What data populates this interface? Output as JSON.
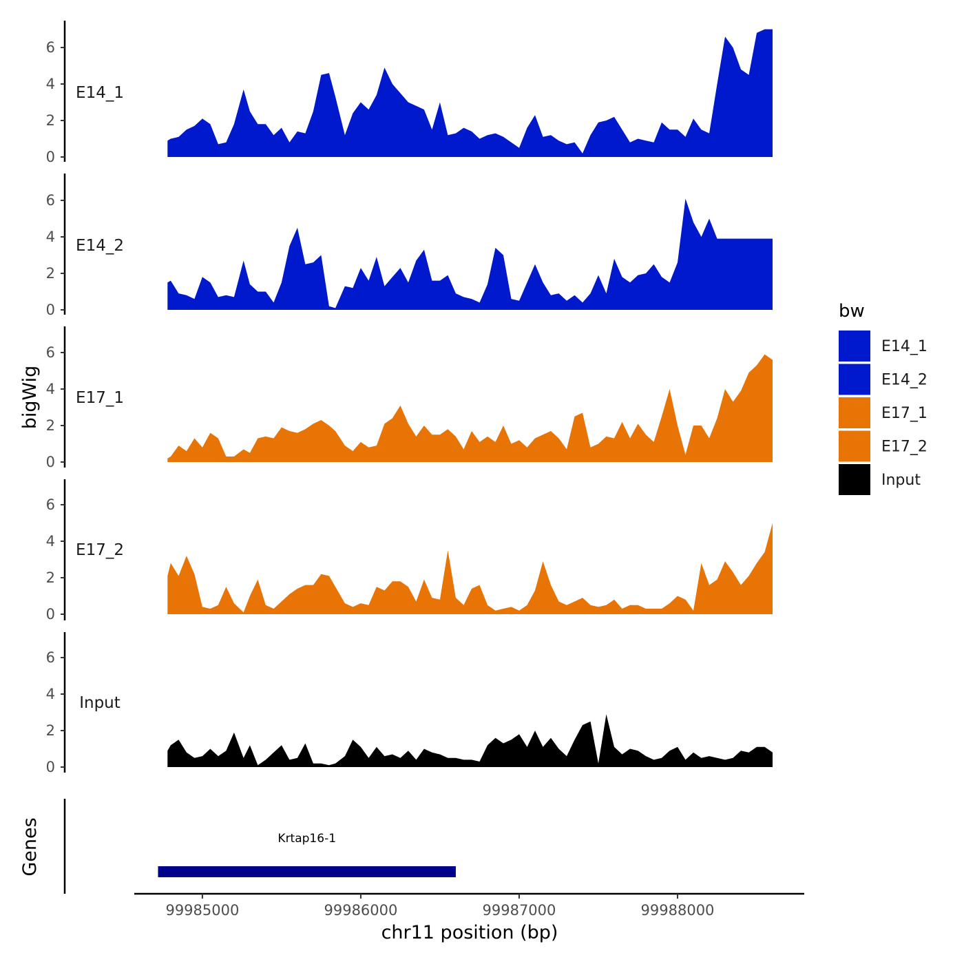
{
  "chart_data": {
    "type": "area",
    "subtype": "genome-track coverage",
    "xlabel": "chr11 position (bp)",
    "ylabel": "bigWig",
    "genes_label": "Genes",
    "x_range": [
      99984570,
      99988800
    ],
    "x_ticks": [
      99985000,
      99986000,
      99987000,
      99988000
    ],
    "x_tick_labels": [
      "99985000",
      "99986000",
      "99987000",
      "99988000"
    ],
    "ylim": [
      0,
      7.5
    ],
    "y_ticks": [
      0,
      2,
      4,
      6
    ],
    "y_tick_labels": [
      "0",
      "2",
      "4",
      "6"
    ],
    "legend": {
      "title": "bw",
      "entries": [
        {
          "name": "E14_1",
          "color": "#0019CC"
        },
        {
          "name": "E14_2",
          "color": "#0019CC"
        },
        {
          "name": "E17_1",
          "color": "#E87405"
        },
        {
          "name": "E17_2",
          "color": "#E87405"
        },
        {
          "name": "Input",
          "color": "#000000"
        }
      ]
    },
    "series": [
      {
        "name": "E14_1",
        "color": "#0019CC",
        "x": [
          99984780,
          99984800,
          99984850,
          99984900,
          99984950,
          99985000,
          99985050,
          99985100,
          99985150,
          99985200,
          99985260,
          99985300,
          99985350,
          99985400,
          99985450,
          99985500,
          99985550,
          99985600,
          99985650,
          99985700,
          99985750,
          99985800,
          99985840,
          99985900,
          99985950,
          99986000,
          99986050,
          99986100,
          99986150,
          99986200,
          99986250,
          99986300,
          99986350,
          99986400,
          99986450,
          99986500,
          99986550,
          99986600,
          99986650,
          99986700,
          99986750,
          99986800,
          99986850,
          99986900,
          99986950,
          99987000,
          99987050,
          99987100,
          99987150,
          99987200,
          99987250,
          99987300,
          99987350,
          99987400,
          99987450,
          99987500,
          99987550,
          99987600,
          99987650,
          99987700,
          99987750,
          99987800,
          99987850,
          99987900,
          99987950,
          99988000,
          99988050,
          99988100,
          99988150,
          99988200,
          99988250,
          99988300,
          99988350,
          99988400,
          99988450,
          99988500,
          99988550,
          99988600
        ],
        "values": [
          0.9,
          1.0,
          1.1,
          1.5,
          1.7,
          2.1,
          1.8,
          0.7,
          0.8,
          1.8,
          3.7,
          2.5,
          1.8,
          1.8,
          1.2,
          1.6,
          0.8,
          1.4,
          1.3,
          2.5,
          4.5,
          4.6,
          3.3,
          1.2,
          2.4,
          3.0,
          2.6,
          3.4,
          4.9,
          4.0,
          3.5,
          3.0,
          2.8,
          2.6,
          1.5,
          3.0,
          1.2,
          1.3,
          1.6,
          1.4,
          1.0,
          1.2,
          1.3,
          1.1,
          0.8,
          0.5,
          1.6,
          2.3,
          1.1,
          1.2,
          0.9,
          0.7,
          0.8,
          0.2,
          1.2,
          1.9,
          2.0,
          2.2,
          1.5,
          0.8,
          1.0,
          0.9,
          0.8,
          1.9,
          1.5,
          1.5,
          1.1,
          2.1,
          1.5,
          1.3,
          4.0,
          6.6,
          6.0,
          4.8,
          4.5,
          6.8,
          7.0,
          7.0
        ]
      },
      {
        "name": "E14_2",
        "color": "#0019CC",
        "x": [
          99984780,
          99984800,
          99984850,
          99984900,
          99984950,
          99985000,
          99985050,
          99985100,
          99985150,
          99985200,
          99985260,
          99985300,
          99985350,
          99985400,
          99985450,
          99985500,
          99985550,
          99985600,
          99985650,
          99985700,
          99985750,
          99985800,
          99985840,
          99985900,
          99985950,
          99986000,
          99986050,
          99986100,
          99986150,
          99986200,
          99986250,
          99986300,
          99986350,
          99986400,
          99986450,
          99986500,
          99986550,
          99986600,
          99986650,
          99986700,
          99986750,
          99986800,
          99986850,
          99986900,
          99986950,
          99987000,
          99987050,
          99987100,
          99987150,
          99987200,
          99987250,
          99987300,
          99987350,
          99987400,
          99987450,
          99987500,
          99987550,
          99987600,
          99987650,
          99987700,
          99987750,
          99987800,
          99987850,
          99987900,
          99987950,
          99988000,
          99988050,
          99988100,
          99988150,
          99988200,
          99988250,
          99988300,
          99988350,
          99988400,
          99988450,
          99988500,
          99988550,
          99988600
        ],
        "values": [
          1.5,
          1.6,
          0.9,
          0.8,
          0.6,
          1.8,
          1.5,
          0.7,
          0.8,
          0.7,
          2.7,
          1.4,
          1.0,
          1.0,
          0.4,
          1.5,
          3.5,
          4.5,
          2.5,
          2.6,
          3.0,
          0.2,
          0.1,
          1.3,
          1.2,
          2.3,
          1.6,
          2.9,
          1.3,
          1.8,
          2.3,
          1.5,
          2.7,
          3.3,
          1.6,
          1.6,
          1.9,
          0.9,
          0.7,
          0.6,
          0.4,
          1.4,
          3.4,
          3.0,
          0.6,
          0.5,
          1.5,
          2.5,
          1.5,
          0.8,
          0.9,
          0.5,
          0.8,
          0.4,
          0.9,
          1.9,
          0.9,
          2.8,
          1.8,
          1.5,
          1.9,
          2.0,
          2.5,
          1.8,
          1.5,
          2.6,
          6.1,
          4.8,
          4.0,
          5.0,
          3.9,
          3.9,
          3.9,
          3.9,
          3.9,
          3.9,
          3.9,
          3.9
        ]
      },
      {
        "name": "E17_1",
        "color": "#E87405",
        "x": [
          99984780,
          99984800,
          99984850,
          99984900,
          99984950,
          99985000,
          99985050,
          99985100,
          99985150,
          99985200,
          99985260,
          99985300,
          99985350,
          99985400,
          99985450,
          99985500,
          99985550,
          99985600,
          99985650,
          99985700,
          99985750,
          99985800,
          99985840,
          99985900,
          99985950,
          99986000,
          99986050,
          99986100,
          99986150,
          99986200,
          99986250,
          99986300,
          99986350,
          99986400,
          99986450,
          99986500,
          99986550,
          99986600,
          99986650,
          99986700,
          99986750,
          99986800,
          99986850,
          99986900,
          99986950,
          99987000,
          99987050,
          99987100,
          99987150,
          99987200,
          99987250,
          99987300,
          99987350,
          99987400,
          99987450,
          99987500,
          99987550,
          99987600,
          99987650,
          99987700,
          99987750,
          99987800,
          99987850,
          99987900,
          99987950,
          99988000,
          99988050,
          99988100,
          99988150,
          99988200,
          99988250,
          99988300,
          99988350,
          99988400,
          99988450,
          99988500,
          99988550,
          99988600
        ],
        "values": [
          0.2,
          0.3,
          0.9,
          0.6,
          1.3,
          0.8,
          1.6,
          1.3,
          0.3,
          0.3,
          0.7,
          0.5,
          1.3,
          1.4,
          1.3,
          1.9,
          1.7,
          1.6,
          1.8,
          2.1,
          2.3,
          2.0,
          1.7,
          0.9,
          0.6,
          1.1,
          0.8,
          0.9,
          2.1,
          2.4,
          3.1,
          2.1,
          1.4,
          2.0,
          1.5,
          1.5,
          1.8,
          1.4,
          0.7,
          1.7,
          1.1,
          1.4,
          1.1,
          2.0,
          1.0,
          1.2,
          0.8,
          1.3,
          1.5,
          1.7,
          1.3,
          0.7,
          2.5,
          2.7,
          0.8,
          1.0,
          1.4,
          1.3,
          2.2,
          1.3,
          2.1,
          1.5,
          1.1,
          2.5,
          4.0,
          2.0,
          0.4,
          2.0,
          2.0,
          1.3,
          2.4,
          4.0,
          3.3,
          3.9,
          4.9,
          5.3,
          5.9,
          5.6
        ]
      },
      {
        "name": "E17_2",
        "color": "#E87405",
        "x": [
          99984780,
          99984800,
          99984850,
          99984900,
          99984950,
          99985000,
          99985050,
          99985100,
          99985150,
          99985200,
          99985260,
          99985300,
          99985350,
          99985400,
          99985450,
          99985500,
          99985550,
          99985600,
          99985650,
          99985700,
          99985750,
          99985800,
          99985840,
          99985900,
          99985950,
          99986000,
          99986050,
          99986100,
          99986150,
          99986200,
          99986250,
          99986300,
          99986350,
          99986400,
          99986450,
          99986500,
          99986550,
          99986600,
          99986650,
          99986700,
          99986750,
          99986800,
          99986850,
          99986900,
          99986950,
          99987000,
          99987050,
          99987100,
          99987150,
          99987200,
          99987250,
          99987300,
          99987350,
          99987400,
          99987450,
          99987500,
          99987550,
          99987600,
          99987650,
          99987700,
          99987750,
          99987800,
          99987850,
          99987900,
          99987950,
          99988000,
          99988050,
          99988100,
          99988150,
          99988200,
          99988250,
          99988300,
          99988350,
          99988400,
          99988450,
          99988500,
          99988550,
          99988600
        ],
        "values": [
          2.1,
          2.8,
          2.1,
          3.2,
          2.2,
          0.4,
          0.3,
          0.5,
          1.5,
          0.6,
          0.1,
          1.0,
          1.9,
          0.5,
          0.3,
          0.7,
          1.1,
          1.4,
          1.6,
          1.6,
          2.2,
          2.1,
          1.5,
          0.6,
          0.4,
          0.6,
          0.5,
          1.5,
          1.3,
          1.8,
          1.8,
          1.5,
          0.7,
          1.9,
          0.9,
          0.8,
          3.5,
          0.9,
          0.5,
          1.4,
          1.6,
          0.5,
          0.2,
          0.3,
          0.4,
          0.2,
          0.5,
          1.3,
          2.9,
          1.6,
          0.7,
          0.5,
          0.7,
          0.9,
          0.5,
          0.4,
          0.5,
          0.8,
          0.3,
          0.5,
          0.5,
          0.3,
          0.3,
          0.3,
          0.6,
          1.0,
          0.8,
          0.2,
          2.8,
          1.6,
          1.9,
          2.9,
          2.3,
          1.6,
          2.1,
          2.8,
          3.4,
          5.0
        ]
      },
      {
        "name": "Input",
        "color": "#000000",
        "x": [
          99984780,
          99984800,
          99984850,
          99984900,
          99984950,
          99985000,
          99985050,
          99985100,
          99985150,
          99985200,
          99985260,
          99985300,
          99985350,
          99985400,
          99985450,
          99985500,
          99985550,
          99985600,
          99985650,
          99985700,
          99985750,
          99985800,
          99985840,
          99985900,
          99985950,
          99986000,
          99986050,
          99986100,
          99986150,
          99986200,
          99986250,
          99986300,
          99986350,
          99986400,
          99986450,
          99986500,
          99986550,
          99986600,
          99986650,
          99986700,
          99986750,
          99986800,
          99986850,
          99986900,
          99986950,
          99987000,
          99987050,
          99987100,
          99987150,
          99987200,
          99987250,
          99987300,
          99987350,
          99987400,
          99987450,
          99987500,
          99987550,
          99987600,
          99987650,
          99987700,
          99987750,
          99987800,
          99987850,
          99987900,
          99987950,
          99988000,
          99988050,
          99988100,
          99988150,
          99988200,
          99988250,
          99988300,
          99988350,
          99988400,
          99988450,
          99988500,
          99988550,
          99988600
        ],
        "values": [
          0.9,
          1.2,
          1.5,
          0.8,
          0.5,
          0.6,
          1.0,
          0.6,
          0.9,
          1.9,
          0.5,
          1.2,
          0.1,
          0.4,
          0.8,
          1.2,
          0.4,
          0.5,
          1.3,
          0.2,
          0.2,
          0.1,
          0.2,
          0.6,
          1.5,
          1.1,
          0.5,
          1.1,
          0.6,
          0.7,
          0.5,
          0.9,
          0.4,
          1.0,
          0.8,
          0.7,
          0.5,
          0.5,
          0.4,
          0.4,
          0.3,
          1.2,
          1.6,
          1.3,
          1.5,
          1.8,
          1.1,
          2.0,
          1.1,
          1.6,
          1.0,
          0.6,
          1.5,
          2.3,
          2.5,
          0.2,
          2.9,
          1.1,
          0.7,
          1.0,
          0.9,
          0.6,
          0.4,
          0.5,
          0.9,
          1.1,
          0.4,
          0.8,
          0.5,
          0.6,
          0.5,
          0.4,
          0.5,
          0.9,
          0.8,
          1.1,
          1.1,
          0.8
        ]
      }
    ],
    "genes": [
      {
        "name": "Krtap16-1",
        "start": 99984720,
        "end": 99986600,
        "color": "#00008B"
      }
    ]
  }
}
